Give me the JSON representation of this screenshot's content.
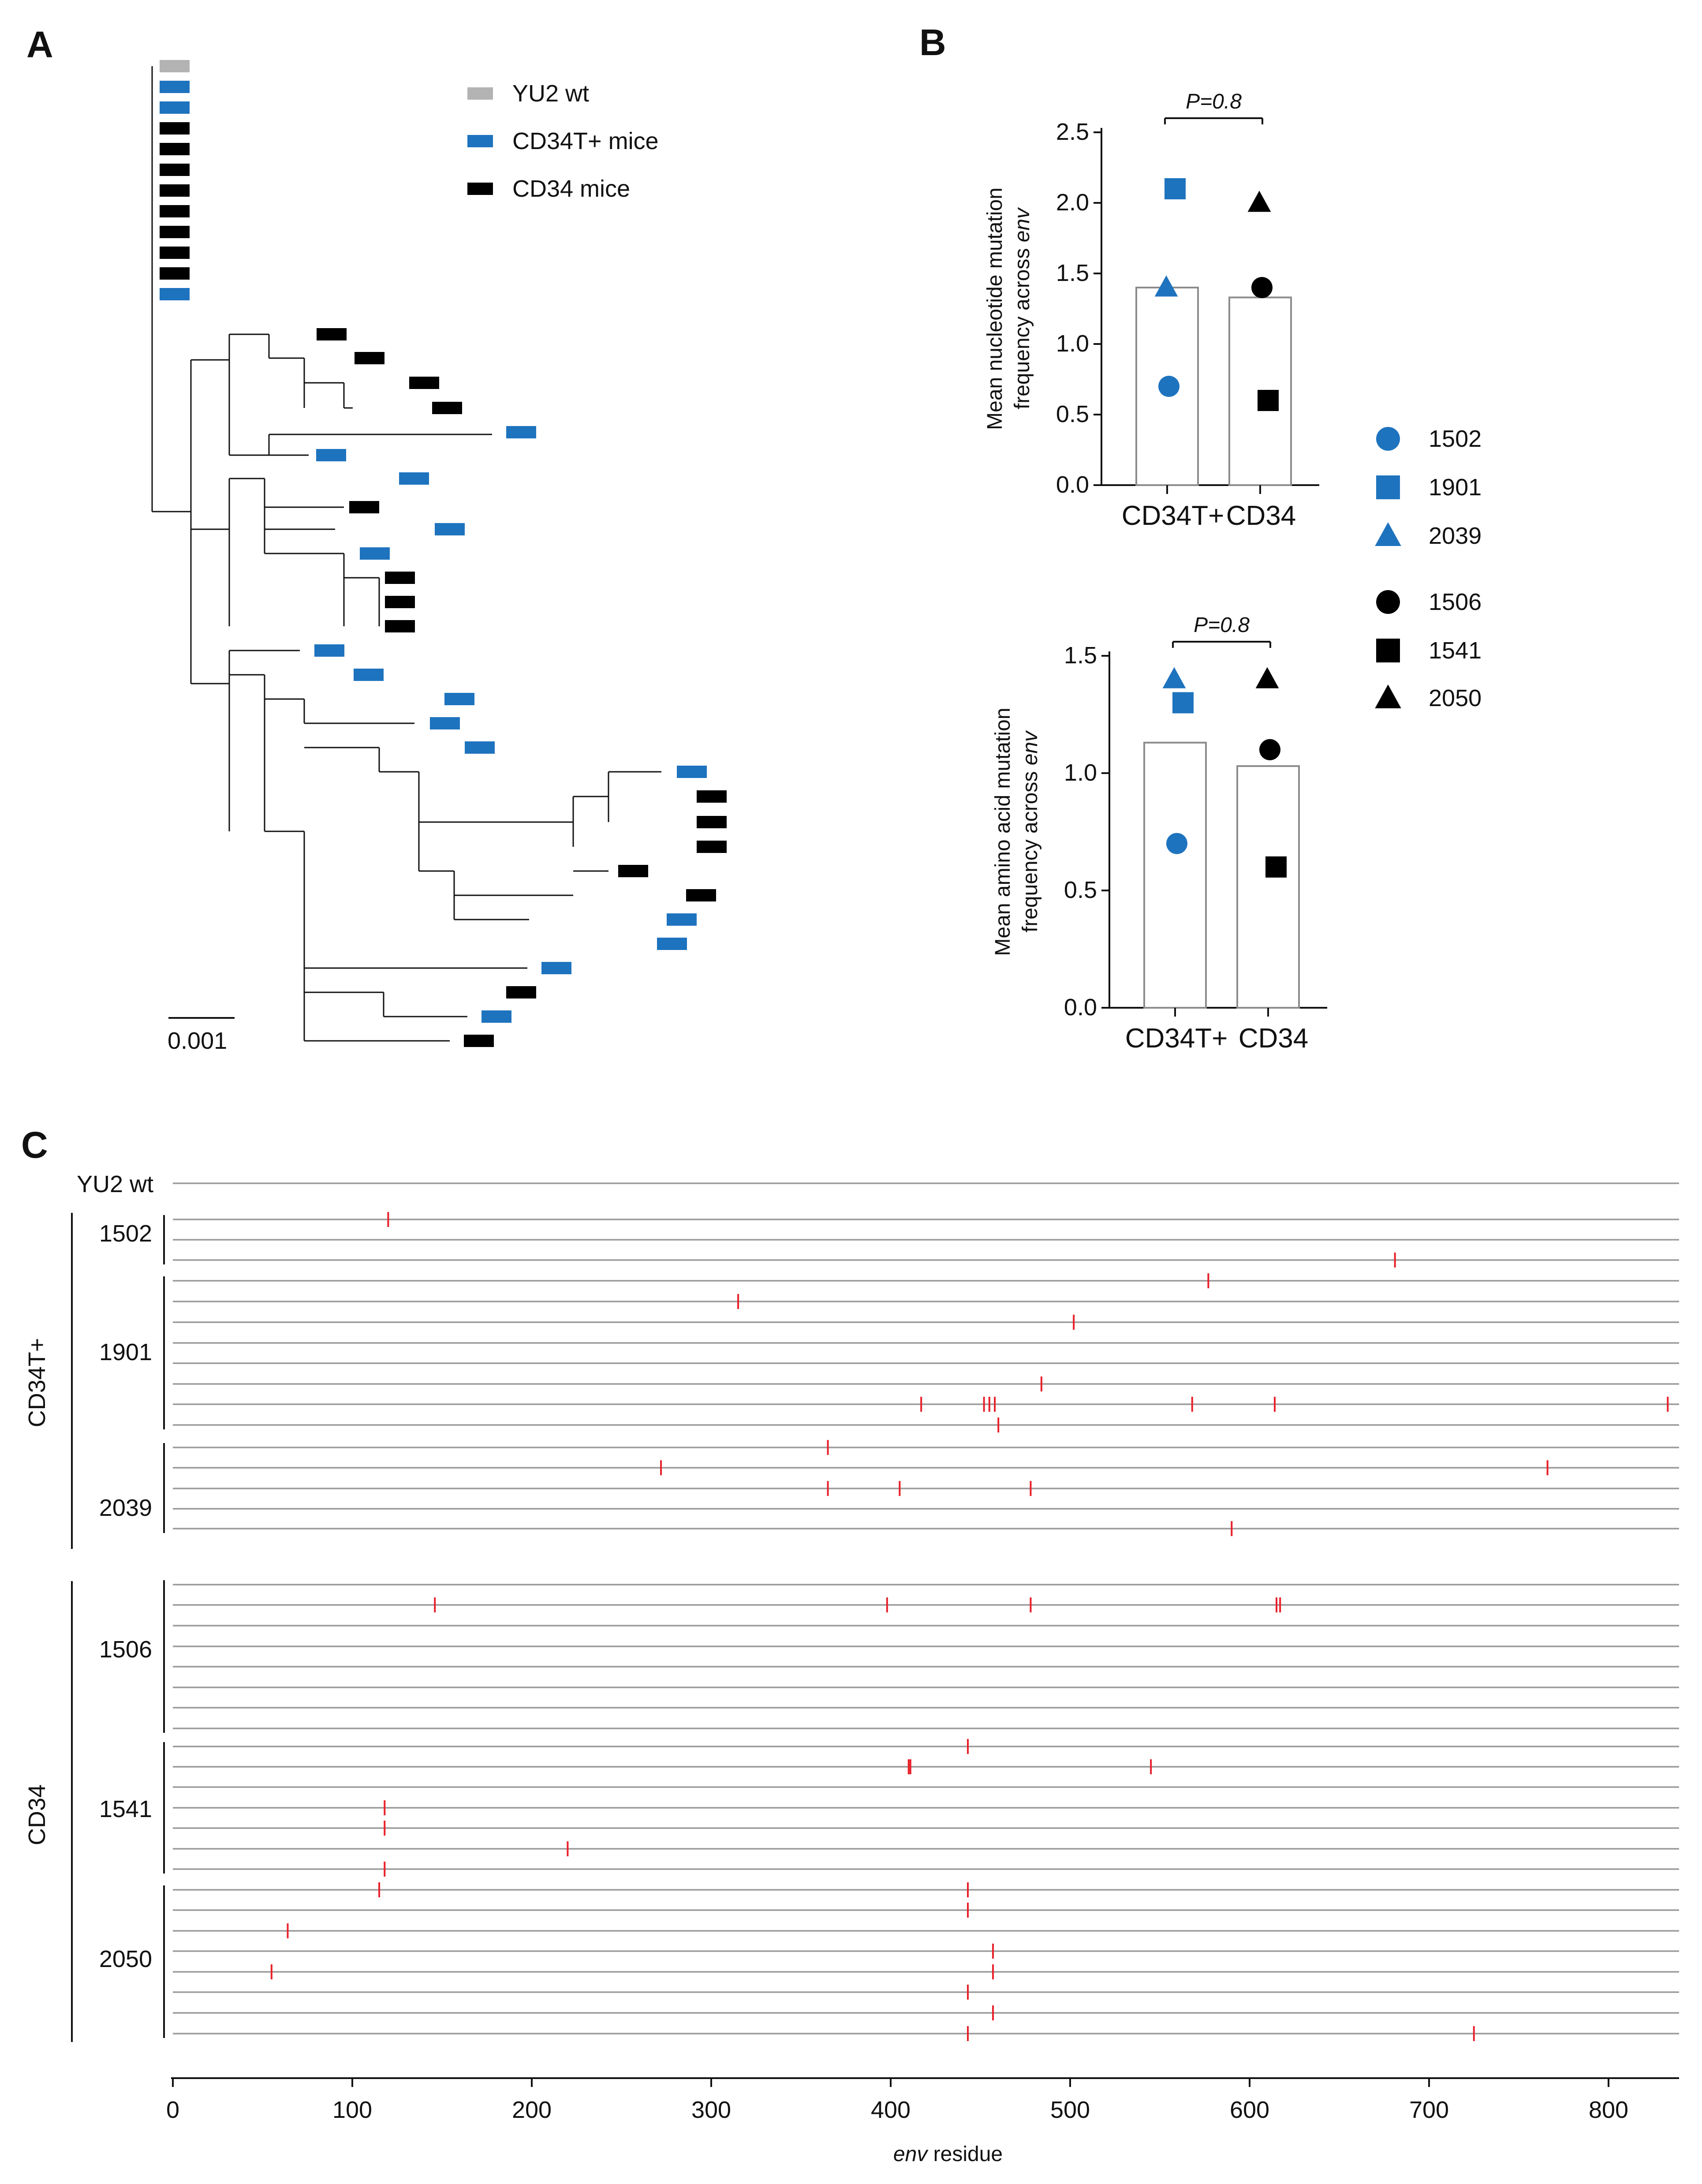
{
  "panels": {
    "a": "A",
    "b": "B",
    "c": "C"
  },
  "colors": {
    "cd34t": "#1e73be",
    "cd34": "#000000",
    "wt": "#b3b3b3",
    "mutation": "#e8202a",
    "bar_edge": "#8c8c8c"
  },
  "tree": {
    "legend": [
      {
        "label": "YU2 wt",
        "group": "wt"
      },
      {
        "label": "CD34T+ mice",
        "group": "cd34t"
      },
      {
        "label": "CD34 mice",
        "group": "cd34"
      }
    ],
    "scale_label": "0.001",
    "unresolved_leaf_groups": [
      "wt",
      "cd34t",
      "cd34t",
      "cd34",
      "cd34",
      "cd34",
      "cd34",
      "cd34",
      "cd34",
      "cd34",
      "cd34",
      "cd34t"
    ],
    "resolved_leaf_groups": [
      "cd34",
      "cd34",
      "cd34",
      "cd34",
      "cd34t",
      "cd34t",
      "cd34t",
      "cd34",
      "cd34t",
      "cd34t",
      "cd34",
      "cd34",
      "cd34",
      "cd34t",
      "cd34t",
      "cd34t",
      "cd34t",
      "cd34t",
      "cd34t",
      "cd34",
      "cd34",
      "cd34",
      "cd34",
      "cd34",
      "cd34t",
      "cd34t",
      "cd34t",
      "cd34",
      "cd34t",
      "cd34"
    ]
  },
  "legend_b": [
    {
      "label": "1502",
      "group": "cd34t",
      "shape": "circle"
    },
    {
      "label": "1901",
      "group": "cd34t",
      "shape": "square"
    },
    {
      "label": "2039",
      "group": "cd34t",
      "shape": "triangle"
    },
    {
      "label": "1506",
      "group": "cd34",
      "shape": "circle"
    },
    {
      "label": "1541",
      "group": "cd34",
      "shape": "square"
    },
    {
      "label": "2050",
      "group": "cd34",
      "shape": "triangle"
    }
  ],
  "chart_data": [
    {
      "type": "bar",
      "id": "nucleotide",
      "ylabel_line1": "Mean nucleotide mutation",
      "ylabel_line2_prefix": "frequency across ",
      "ylabel_line2_italic": "env",
      "categories": [
        "CD34T+",
        "CD34"
      ],
      "means": [
        1.4,
        1.33
      ],
      "ylim": [
        0,
        2.5
      ],
      "yticks": [
        "0.0",
        "0.5",
        "1.0",
        "1.5",
        "2.0",
        "2.5"
      ],
      "pvalue": "P=0.8",
      "points": [
        {
          "mouse": "1502",
          "category": "CD34T+",
          "value": 0.7
        },
        {
          "mouse": "1901",
          "category": "CD34T+",
          "value": 2.1
        },
        {
          "mouse": "2039",
          "category": "CD34T+",
          "value": 1.4
        },
        {
          "mouse": "1506",
          "category": "CD34",
          "value": 1.4
        },
        {
          "mouse": "1541",
          "category": "CD34",
          "value": 0.6
        },
        {
          "mouse": "2050",
          "category": "CD34",
          "value": 2.0
        }
      ]
    },
    {
      "type": "bar",
      "id": "amino_acid",
      "ylabel_line1": "Mean amino acid mutation",
      "ylabel_line2_prefix": "frequency across ",
      "ylabel_line2_italic": "env",
      "categories": [
        "CD34T+",
        "CD34"
      ],
      "means": [
        1.13,
        1.03
      ],
      "ylim": [
        0,
        1.5
      ],
      "yticks": [
        "0.0",
        "0.5",
        "1.0",
        "1.5"
      ],
      "pvalue": "P=0.8",
      "points": [
        {
          "mouse": "1502",
          "category": "CD34T+",
          "value": 0.7
        },
        {
          "mouse": "1901",
          "category": "CD34T+",
          "value": 1.3
        },
        {
          "mouse": "2039",
          "category": "CD34T+",
          "value": 1.4
        },
        {
          "mouse": "1506",
          "category": "CD34",
          "value": 1.1
        },
        {
          "mouse": "1541",
          "category": "CD34",
          "value": 0.6
        },
        {
          "mouse": "2050",
          "category": "CD34",
          "value": 1.4
        }
      ]
    },
    {
      "type": "scatter",
      "id": "env_mutations",
      "xlabel_italic": "env",
      "xlabel_rest": " residue",
      "xlim": [
        0,
        840
      ],
      "xticks": [
        "0",
        "100",
        "200",
        "300",
        "400",
        "500",
        "600",
        "700",
        "800"
      ],
      "wt_label": "YU2 wt",
      "groups": [
        {
          "label": "CD34T+",
          "mice": [
            {
              "label": "1502",
              "sequences": [
                [
                  120
                ],
                [],
                [
                  681
                ]
              ]
            },
            {
              "label": "1901",
              "sequences": [
                [
                  577
                ],
                [
                  315
                ],
                [
                  502
                ],
                [],
                [],
                [
                  484
                ],
                [
                  417,
                  452,
                  455,
                  458,
                  568,
                  614,
                  833
                ],
                [
                  460
                ]
              ]
            },
            {
              "label": "2039",
              "sequences": [
                [
                  365
                ],
                [
                  272,
                  766
                ],
                [
                  365,
                  405,
                  478
                ],
                [],
                [
                  590
                ]
              ]
            }
          ]
        },
        {
          "label": "CD34",
          "mice": [
            {
              "label": "1506",
              "sequences": [
                [],
                [
                  146,
                  398,
                  478,
                  615,
                  617
                ],
                [],
                [],
                [],
                [],
                [],
                []
              ]
            },
            {
              "label": "1541",
              "sequences": [
                [
                  443
                ],
                [
                  410,
                  411,
                  545
                ],
                [],
                [
                  118
                ],
                [
                  118
                ],
                [
                  220
                ],
                [
                  118
                ]
              ]
            },
            {
              "label": "2050",
              "sequences": [
                [
                  115,
                  443
                ],
                [
                  443
                ],
                [
                  64
                ],
                [
                  457
                ],
                [
                  55,
                  457
                ],
                [
                  443
                ],
                [
                  457
                ],
                [
                  443,
                  725
                ]
              ]
            }
          ]
        }
      ]
    }
  ]
}
